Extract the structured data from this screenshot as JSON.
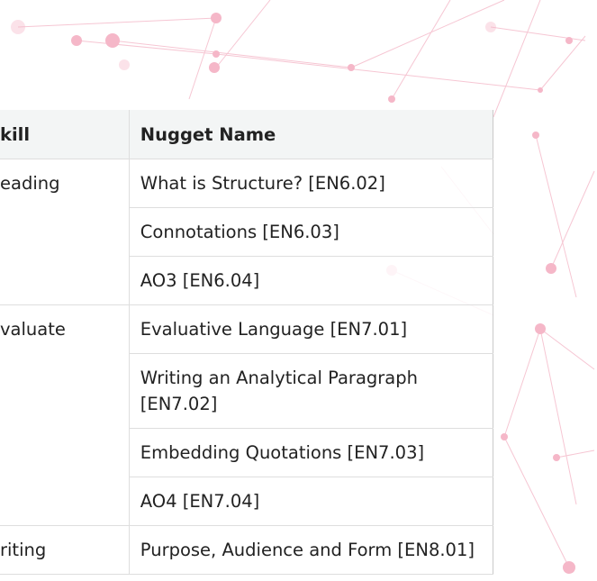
{
  "table": {
    "header": [
      "kill",
      "Nugget Name"
    ],
    "groups": [
      {
        "skill": "eading",
        "nuggets": [
          "What is Structure? [EN6.02]",
          "Connotations [EN6.03]",
          "AO3 [EN6.04]"
        ]
      },
      {
        "skill": "valuate",
        "nuggets": [
          "Evaluative Language [EN7.01]",
          "Writing an Analytical Paragraph [EN7.02]",
          "Embedding Quotations [EN7.03]",
          "AO4 [EN7.04]"
        ]
      },
      {
        "skill": "riting",
        "nuggets": [
          "Purpose, Audience and Form [EN8.01]"
        ]
      }
    ]
  }
}
